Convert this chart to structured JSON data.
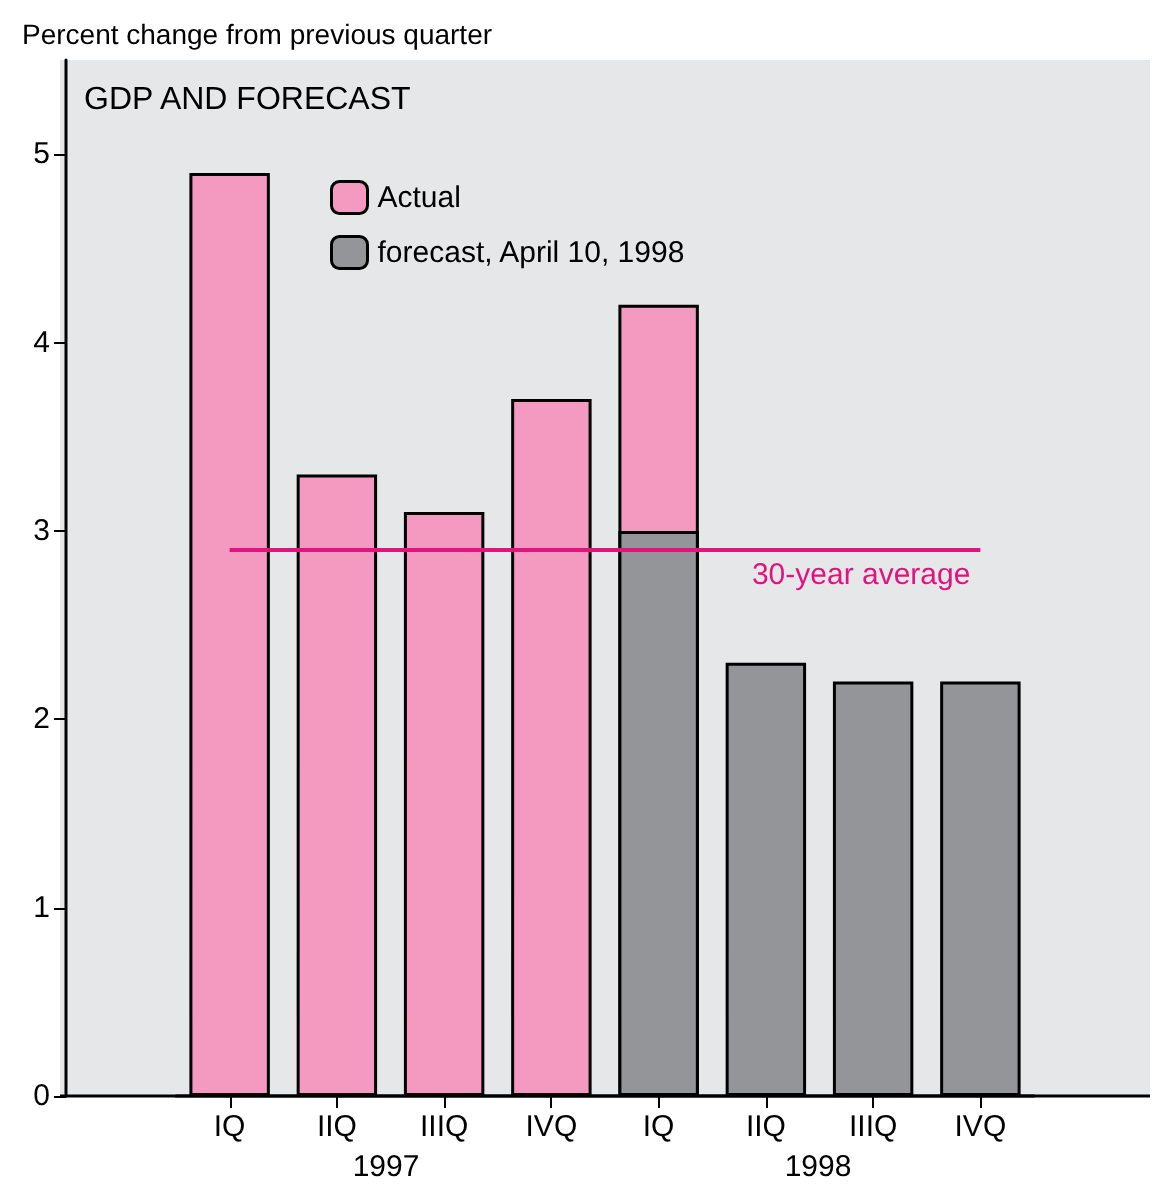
{
  "chart_data": {
    "type": "bar",
    "title": "GDP AND FORECAST",
    "ylabel": "Percent change from previous quarter",
    "categories": [
      "IQ",
      "IIQ",
      "IIIQ",
      "IVQ",
      "IQ",
      "IIQ",
      "IIIQ",
      "IVQ"
    ],
    "series": [
      {
        "name": "Actual",
        "color": "#f49ac1",
        "values": [
          4.9,
          3.3,
          3.1,
          3.7,
          4.2,
          null,
          null,
          null
        ]
      },
      {
        "name": "forecast, April 10, 1998",
        "color": "#939598",
        "values": [
          null,
          null,
          null,
          null,
          3.0,
          2.3,
          2.2,
          2.2
        ]
      }
    ],
    "ylim": [
      0,
      5.5
    ],
    "yticks": [
      0,
      1,
      2,
      3,
      4,
      5
    ],
    "grid": false,
    "legend": "top left",
    "ref_lines": [
      {
        "axis": "y",
        "value": 2.9,
        "label": "30-year average",
        "color": "#e0147f"
      }
    ],
    "annotations": [
      "1997",
      "1998"
    ]
  }
}
